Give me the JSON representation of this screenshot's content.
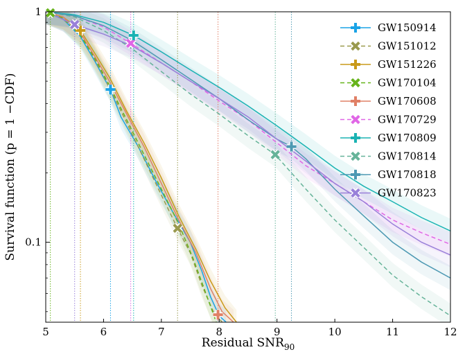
{
  "chart_data": {
    "type": "line",
    "xlabel": "Residual SNR",
    "xlabel_sub": "90",
    "ylabel": "Survival function (p = 1 −CDF)",
    "xlim": [
      5,
      12
    ],
    "ylim": [
      0.045,
      1
    ],
    "yscale": "log",
    "x_ticks": [
      5,
      6,
      7,
      8,
      9,
      10,
      11,
      12
    ],
    "y_ticks": [
      {
        "value": 1,
        "label": "1"
      },
      {
        "value": 0.1,
        "label": "0.1"
      }
    ],
    "grid": false,
    "legend_position": "top-right",
    "series": [
      {
        "name": "GW150914",
        "color": "#1aa3e6",
        "dash": "solid",
        "marker": "plus",
        "marker_x": 6.12,
        "marker_y": 0.46,
        "x": [
          5.0,
          5.3,
          5.6,
          5.85,
          6.0,
          6.12,
          6.3,
          6.6,
          6.9,
          7.2,
          7.5,
          7.7,
          7.85,
          8.0,
          8.12
        ],
        "y": [
          1.0,
          0.93,
          0.78,
          0.61,
          0.52,
          0.46,
          0.35,
          0.26,
          0.185,
          0.135,
          0.1,
          0.075,
          0.058,
          0.048,
          0.045
        ]
      },
      {
        "name": "GW151012",
        "color": "#99994d",
        "dash": "dash",
        "marker": "x",
        "marker_x": 7.28,
        "marker_y": 0.115,
        "x": [
          5.0,
          5.3,
          5.6,
          5.85,
          6.1,
          6.4,
          6.7,
          7.0,
          7.28,
          7.5,
          7.7,
          7.9,
          8.05
        ],
        "y": [
          1.0,
          0.93,
          0.8,
          0.62,
          0.47,
          0.33,
          0.23,
          0.16,
          0.115,
          0.09,
          0.065,
          0.05,
          0.045
        ]
      },
      {
        "name": "GW151226",
        "color": "#c99a1a",
        "dash": "solid",
        "marker": "plus",
        "marker_x": 5.6,
        "marker_y": 0.83,
        "x": [
          5.0,
          5.3,
          5.6,
          5.85,
          6.1,
          6.4,
          6.7,
          7.0,
          7.3,
          7.6,
          7.85,
          8.1,
          8.3
        ],
        "y": [
          1.0,
          0.95,
          0.83,
          0.66,
          0.52,
          0.37,
          0.27,
          0.19,
          0.13,
          0.093,
          0.068,
          0.052,
          0.045
        ]
      },
      {
        "name": "GW170104",
        "color": "#66b31a",
        "dash": "dash",
        "marker": "x",
        "marker_x": 5.08,
        "marker_y": 0.99,
        "x": [
          5.0,
          5.3,
          5.6,
          5.85,
          6.1,
          6.4,
          6.7,
          7.0,
          7.3,
          7.55,
          7.75,
          7.95
        ],
        "y": [
          1.0,
          0.94,
          0.79,
          0.63,
          0.48,
          0.34,
          0.24,
          0.17,
          0.12,
          0.085,
          0.062,
          0.045
        ]
      },
      {
        "name": "GW170608",
        "color": "#e08066",
        "dash": "solid",
        "marker": "plus",
        "marker_x": 7.98,
        "marker_y": 0.0485,
        "x": [
          5.0,
          5.3,
          5.6,
          5.85,
          6.1,
          6.4,
          6.7,
          7.0,
          7.3,
          7.6,
          7.85,
          8.05,
          8.25
        ],
        "y": [
          1.0,
          0.95,
          0.81,
          0.64,
          0.5,
          0.36,
          0.26,
          0.18,
          0.125,
          0.09,
          0.063,
          0.05,
          0.045
        ]
      },
      {
        "name": "GW170729",
        "color": "#e066e6",
        "dash": "dash",
        "marker": "x",
        "marker_x": 6.47,
        "marker_y": 0.73,
        "x": [
          5.0,
          5.5,
          6.0,
          6.47,
          7.0,
          7.5,
          8.0,
          8.5,
          9.0,
          9.5,
          10.0,
          10.5,
          11.0,
          11.5,
          12.0
        ],
        "y": [
          1.0,
          0.96,
          0.86,
          0.73,
          0.6,
          0.5,
          0.41,
          0.34,
          0.27,
          0.215,
          0.18,
          0.15,
          0.125,
          0.11,
          0.098
        ]
      },
      {
        "name": "GW170809",
        "color": "#1ab3b3",
        "dash": "solid",
        "marker": "plus",
        "marker_x": 6.52,
        "marker_y": 0.79,
        "x": [
          5.0,
          5.5,
          6.0,
          6.52,
          7.0,
          7.5,
          8.0,
          8.5,
          9.0,
          9.5,
          10.0,
          10.5,
          11.0,
          11.5,
          12.0
        ],
        "y": [
          1.0,
          0.97,
          0.9,
          0.79,
          0.67,
          0.56,
          0.47,
          0.39,
          0.32,
          0.26,
          0.21,
          0.175,
          0.15,
          0.128,
          0.112
        ]
      },
      {
        "name": "GW170814",
        "color": "#66b399",
        "dash": "dash",
        "marker": "x",
        "marker_x": 8.97,
        "marker_y": 0.24,
        "x": [
          5.0,
          5.5,
          6.0,
          6.5,
          7.0,
          7.5,
          8.0,
          8.5,
          8.97,
          9.5,
          10.0,
          10.5,
          11.0,
          11.5,
          12.0
        ],
        "y": [
          1.0,
          0.95,
          0.83,
          0.69,
          0.55,
          0.44,
          0.36,
          0.29,
          0.24,
          0.17,
          0.125,
          0.095,
          0.072,
          0.058,
          0.048
        ]
      },
      {
        "name": "GW170818",
        "color": "#4d99b3",
        "dash": "solid",
        "marker": "plus",
        "marker_x": 9.25,
        "marker_y": 0.26,
        "x": [
          5.0,
          5.5,
          6.0,
          6.5,
          7.0,
          7.5,
          8.0,
          8.5,
          9.0,
          9.25,
          9.5,
          10.0,
          10.5,
          11.0,
          11.5,
          12.0
        ],
        "y": [
          1.0,
          0.96,
          0.87,
          0.75,
          0.62,
          0.51,
          0.42,
          0.34,
          0.28,
          0.26,
          0.23,
          0.17,
          0.13,
          0.1,
          0.082,
          0.07
        ]
      },
      {
        "name": "GW170823",
        "color": "#9980d9",
        "dash": "solid",
        "marker": "x",
        "marker_x": 5.5,
        "marker_y": 0.88,
        "x": [
          5.0,
          5.5,
          6.0,
          6.5,
          7.0,
          7.5,
          8.0,
          8.5,
          9.0,
          9.5,
          10.0,
          10.5,
          11.0,
          11.5,
          12.0
        ],
        "y": [
          1.0,
          0.88,
          0.8,
          0.71,
          0.6,
          0.5,
          0.42,
          0.35,
          0.28,
          0.225,
          0.18,
          0.15,
          0.12,
          0.1,
          0.088
        ]
      }
    ],
    "vertical_lines": [
      {
        "x": 5.08,
        "color": "#66b31a"
      },
      {
        "x": 5.5,
        "color": "#9980d9"
      },
      {
        "x": 5.6,
        "color": "#c99a1a"
      },
      {
        "x": 6.12,
        "color": "#1aa3e6"
      },
      {
        "x": 6.47,
        "color": "#e066e6"
      },
      {
        "x": 6.52,
        "color": "#1ab3b3"
      },
      {
        "x": 7.28,
        "color": "#99994d"
      },
      {
        "x": 7.98,
        "color": "#e08066"
      },
      {
        "x": 8.97,
        "color": "#66b399"
      },
      {
        "x": 9.25,
        "color": "#4d99b3"
      }
    ]
  }
}
